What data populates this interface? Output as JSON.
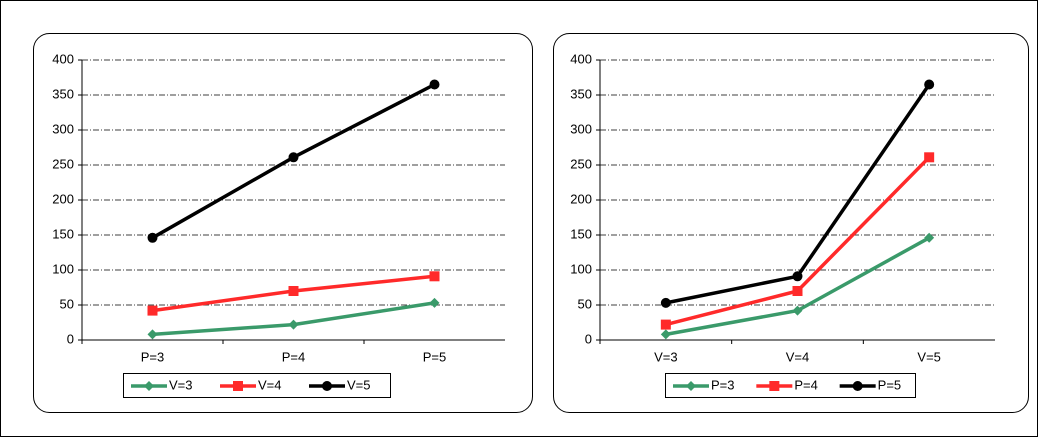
{
  "chart_data": [
    {
      "type": "line",
      "categories": [
        "P=3",
        "P=4",
        "P=5"
      ],
      "series": [
        {
          "name": "V=3",
          "color": "#3a9a6a",
          "marker": "diamond",
          "values": [
            8,
            22,
            53
          ]
        },
        {
          "name": "V=4",
          "color": "#ff2a2a",
          "marker": "square",
          "values": [
            42,
            70,
            91
          ]
        },
        {
          "name": "V=5",
          "color": "#000000",
          "marker": "circle",
          "values": [
            146,
            261,
            365
          ]
        }
      ],
      "ylim": [
        0,
        400
      ],
      "yticks": [
        0,
        50,
        100,
        150,
        200,
        250,
        300,
        350,
        400
      ],
      "grid": true,
      "legend": "bottom"
    },
    {
      "type": "line",
      "categories": [
        "V=3",
        "V=4",
        "V=5"
      ],
      "series": [
        {
          "name": "P=3",
          "color": "#3a9a6a",
          "marker": "diamond",
          "values": [
            8,
            42,
            146
          ]
        },
        {
          "name": "P=4",
          "color": "#ff2a2a",
          "marker": "square",
          "values": [
            22,
            70,
            261
          ]
        },
        {
          "name": "P=5",
          "color": "#000000",
          "marker": "circle",
          "values": [
            53,
            91,
            365
          ]
        }
      ],
      "ylim": [
        0,
        400
      ],
      "yticks": [
        0,
        50,
        100,
        150,
        200,
        250,
        300,
        350,
        400
      ],
      "grid": true,
      "legend": "bottom"
    }
  ]
}
